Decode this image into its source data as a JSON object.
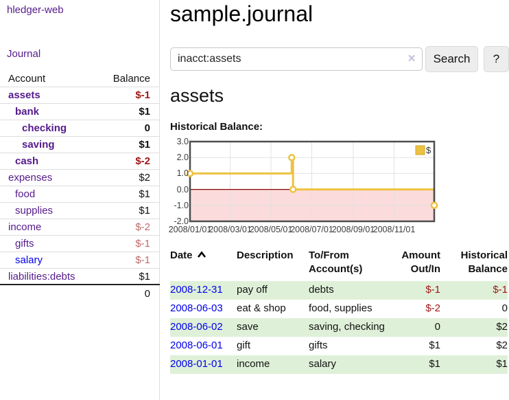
{
  "sidebar": {
    "brand": "hledger-web",
    "journal_link": "Journal",
    "accounts_table": {
      "headers": [
        "Account",
        "Balance"
      ],
      "rows": [
        {
          "account": "assets",
          "indent": 1,
          "bold": true,
          "balance": "$-1",
          "balance_style": "neg-strong"
        },
        {
          "account": "bank",
          "indent": 2,
          "bold": true,
          "balance": "$1",
          "balance_style": "pos"
        },
        {
          "account": "checking",
          "indent": 3,
          "bold": true,
          "balance": "0",
          "balance_style": "pos"
        },
        {
          "account": "saving",
          "indent": 3,
          "bold": true,
          "balance": "$1",
          "balance_style": "pos"
        },
        {
          "account": "cash",
          "indent": 2,
          "bold": true,
          "balance": "$-2",
          "balance_style": "neg-strong"
        },
        {
          "account": "expenses",
          "indent": 1,
          "bold": false,
          "balance": "$2",
          "balance_style": "pos"
        },
        {
          "account": "food",
          "indent": 2,
          "bold": false,
          "balance": "$1",
          "balance_style": "pos"
        },
        {
          "account": "supplies",
          "indent": 2,
          "bold": false,
          "balance": "$1",
          "balance_style": "pos"
        },
        {
          "account": "income",
          "indent": 1,
          "bold": false,
          "balance": "$-2",
          "balance_style": "neg-muted"
        },
        {
          "account": "gifts",
          "indent": 2,
          "bold": false,
          "balance": "$-1",
          "balance_style": "neg-muted"
        },
        {
          "account": "salary",
          "indent": 2,
          "bold": false,
          "link_style": "unvisited",
          "balance": "$-1",
          "balance_style": "neg-muted"
        },
        {
          "account": "liabilities:debts",
          "indent": 1,
          "bold": false,
          "balance": "$1",
          "balance_style": "pos"
        }
      ],
      "total": "0"
    }
  },
  "header": {
    "title": "sample.journal"
  },
  "search": {
    "value": "inacct:assets",
    "clear_icon": "×",
    "button_label": "Search",
    "help_label": "?"
  },
  "account_page": {
    "title": "assets",
    "chart_label": "Historical Balance:"
  },
  "chart_data": {
    "type": "line",
    "step": true,
    "title": "Historical Balance:",
    "series": [
      {
        "name": "$",
        "x": [
          "2008-01-01",
          "2008-06-01",
          "2008-06-03",
          "2008-12-31"
        ],
        "values": [
          1,
          2,
          0,
          -1
        ]
      }
    ],
    "x_range": [
      "2008-01-01",
      "2008-12-31"
    ],
    "ylim": [
      -2,
      3
    ],
    "x_ticks": [
      {
        "date": "2008-01-01",
        "label": "2008/01/01"
      },
      {
        "date": "2008-03-01",
        "label": "2008/03/01"
      },
      {
        "date": "2008-05-01",
        "label": "2008/05/01"
      },
      {
        "date": "2008-07-01",
        "label": "2008/07/01"
      },
      {
        "date": "2008-09-01",
        "label": "2008/09/01"
      },
      {
        "date": "2008-11-01",
        "label": "2008/11/01"
      }
    ],
    "y_ticks": [
      {
        "value": 3,
        "label": "3.0"
      },
      {
        "value": 2,
        "label": "2.0"
      },
      {
        "value": 1,
        "label": "1.0"
      },
      {
        "value": 0,
        "label": "0.0"
      },
      {
        "value": -1,
        "label": "-1.0"
      },
      {
        "value": -2,
        "label": "-2.0"
      }
    ],
    "grid": true,
    "legend_position": "top-right",
    "legend_label": "$",
    "line_color": "#edc240",
    "marker_fill": "#ffffff",
    "negative_region_fill": "#fbdbdb",
    "zero_line_color": "#8b0000",
    "border_color": "#4d4d4d",
    "gridline_color": "#e2e2e2"
  },
  "register": {
    "columns": [
      {
        "key": "date",
        "label": "Date",
        "align": "left",
        "sorted": "asc"
      },
      {
        "key": "description",
        "label": "Description",
        "align": "left"
      },
      {
        "key": "accounts",
        "label": "To/From Account(s)",
        "align": "left"
      },
      {
        "key": "amount",
        "label": "Amount Out/In",
        "align": "right"
      },
      {
        "key": "balance",
        "label": "Historical Balance",
        "align": "right"
      }
    ],
    "rows": [
      {
        "date": "2008-12-31",
        "description": "pay off",
        "accounts": "debts",
        "amount": "$-1",
        "amount_neg": true,
        "balance": "$-1",
        "balance_neg": true,
        "striped": true
      },
      {
        "date": "2008-06-03",
        "description": "eat & shop",
        "accounts": "food, supplies",
        "amount": "$-2",
        "amount_neg": true,
        "balance": "0",
        "balance_neg": false,
        "striped": false
      },
      {
        "date": "2008-06-02",
        "description": "save",
        "accounts": "saving, checking",
        "amount": "0",
        "amount_neg": false,
        "balance": "$2",
        "balance_neg": false,
        "striped": true
      },
      {
        "date": "2008-06-01",
        "description": "gift",
        "accounts": "gifts",
        "amount": "$1",
        "amount_neg": false,
        "balance": "$2",
        "balance_neg": false,
        "striped": false
      },
      {
        "date": "2008-01-01",
        "description": "income",
        "accounts": "salary",
        "amount": "$1",
        "amount_neg": false,
        "balance": "$1",
        "balance_neg": false,
        "striped": true
      }
    ]
  },
  "colors": {
    "link_purple": "#551a8b",
    "link_blue": "#0000ee",
    "negative_strong": "#9e1616",
    "negative_muted": "#c06b6b",
    "row_stripe_green": "#dff0d8"
  }
}
